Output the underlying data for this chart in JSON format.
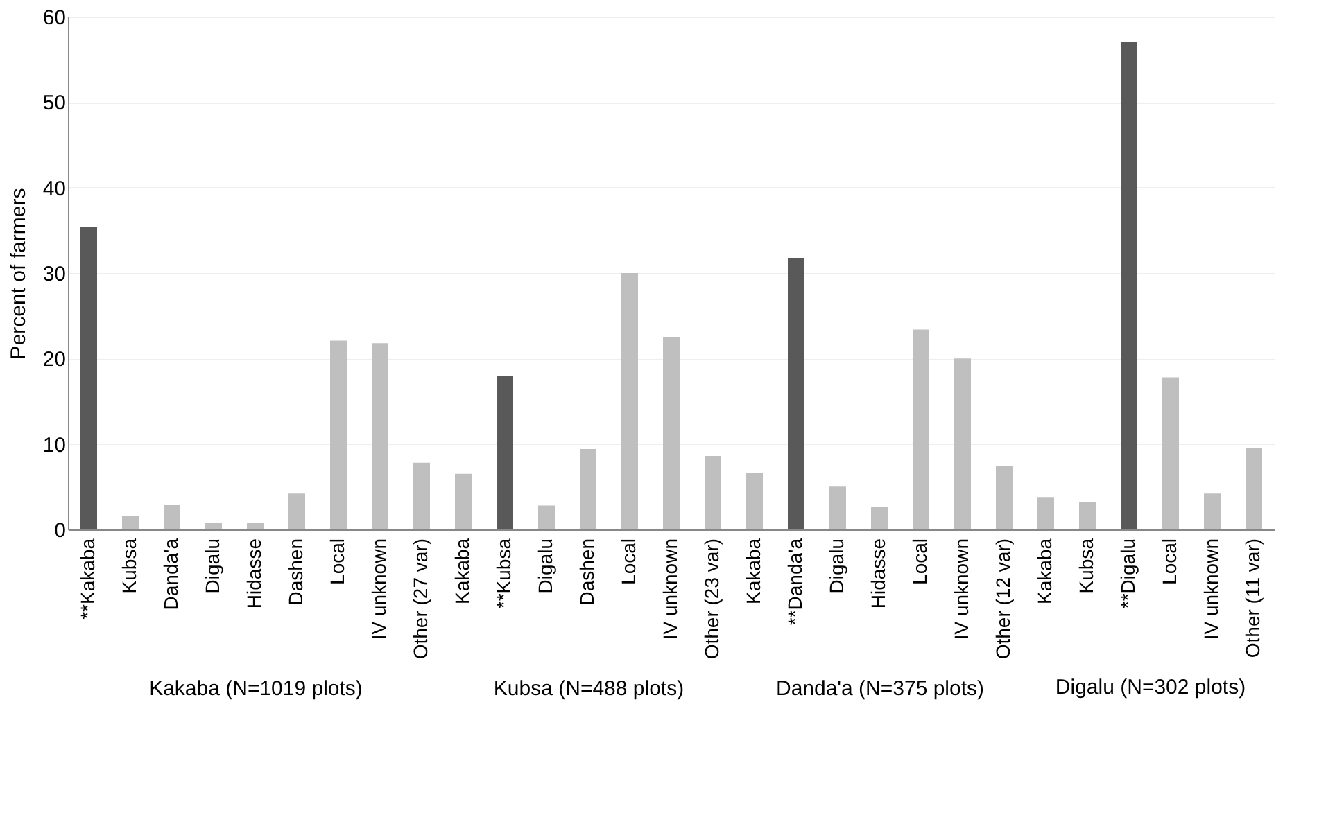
{
  "chart_data": [
    {
      "type": "bar",
      "xlabel": "Kakaba (N=1019 plots)",
      "ylabel": "Percent of farmers",
      "categories": [
        "**Kakaba",
        "Kubsa",
        "Danda'a",
        "Digalu",
        "Hidasse",
        "Dashen",
        "Local",
        "IV unknown",
        "Other (27 var)"
      ],
      "values": [
        35.4,
        1.6,
        2.9,
        0.8,
        0.8,
        4.2,
        22.1,
        21.8,
        7.8
      ],
      "colors": [
        "#595959",
        "#bfbfbf",
        "#bfbfbf",
        "#bfbfbf",
        "#bfbfbf",
        "#bfbfbf",
        "#bfbfbf",
        "#bfbfbf",
        "#bfbfbf"
      ],
      "ylim": [
        0,
        60
      ],
      "yticks": [
        0,
        10,
        20,
        30,
        40,
        50,
        60
      ],
      "grid": "y"
    },
    {
      "type": "bar",
      "xlabel": "Kubsa (N=488 plots)",
      "categories": [
        "Kakaba",
        "**Kubsa",
        "Digalu",
        "Dashen",
        "Local",
        "IV unknown",
        "Other (23 var)"
      ],
      "values": [
        6.5,
        18,
        2.8,
        9.4,
        30,
        22.5,
        8.6
      ],
      "colors": [
        "#bfbfbf",
        "#595959",
        "#bfbfbf",
        "#bfbfbf",
        "#bfbfbf",
        "#bfbfbf",
        "#bfbfbf"
      ],
      "ylim": [
        0,
        60
      ],
      "yticks": [
        0,
        10,
        20,
        30,
        40,
        50,
        60
      ],
      "grid": "y",
      "tick_labels": "x"
    },
    {
      "type": "bar",
      "xlabel": "Danda'a (N=375 plots)",
      "categories": [
        "Kakaba",
        "**Danda'a",
        "Digalu",
        "Hidasse",
        "Local",
        "IV unknown",
        "Other (12 var)"
      ],
      "values": [
        6.6,
        31.7,
        5,
        2.6,
        23.4,
        20,
        7.4
      ],
      "colors": [
        "#bfbfbf",
        "#595959",
        "#bfbfbf",
        "#bfbfbf",
        "#bfbfbf",
        "#bfbfbf",
        "#bfbfbf"
      ],
      "ylim": [
        0,
        60
      ],
      "yticks": [
        0,
        10,
        20,
        30,
        40,
        50,
        60
      ],
      "grid": "y",
      "tick_labels": "x"
    },
    {
      "type": "bar",
      "xlabel": "Digalu (N=302 plots)",
      "categories": [
        "Kakaba",
        "Kubsa",
        "**Digalu",
        "Local",
        "IV unknown",
        "Other (11 var)"
      ],
      "values": [
        3.8,
        3.2,
        57,
        17.8,
        4.2,
        9.5
      ],
      "colors": [
        "#bfbfbf",
        "#bfbfbf",
        "#595959",
        "#bfbfbf",
        "#bfbfbf",
        "#bfbfbf"
      ],
      "ylim": [
        0,
        60
      ],
      "yticks": [
        0,
        10,
        20,
        30,
        40,
        50,
        60
      ],
      "grid": "y",
      "tick_labels": "x"
    }
  ]
}
